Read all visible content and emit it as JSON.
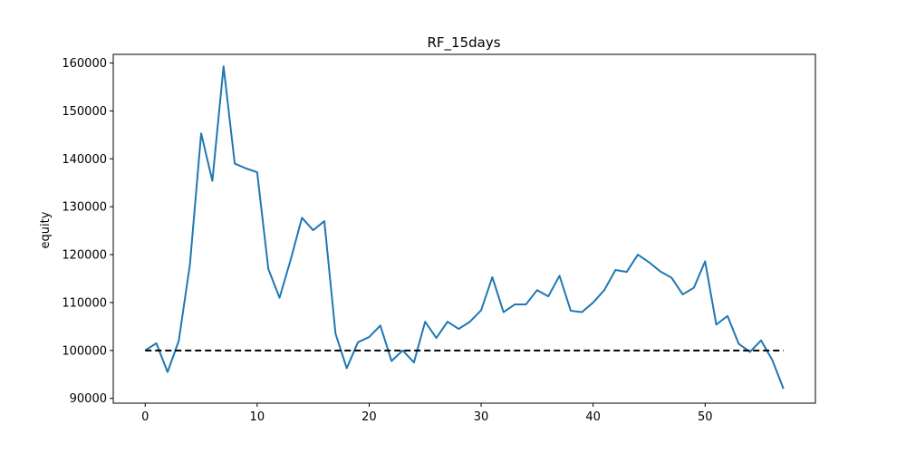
{
  "chart_data": {
    "type": "line",
    "title": "RF_15days",
    "xlabel": "",
    "ylabel": "equity",
    "xlim": [
      -2.85,
      59.85
    ],
    "ylim": [
      89000,
      161800
    ],
    "xticks": [
      0,
      10,
      20,
      30,
      40,
      50
    ],
    "yticks": [
      90000,
      100000,
      110000,
      120000,
      130000,
      140000,
      150000,
      160000
    ],
    "grid": false,
    "series": [
      {
        "color": "#1f77b4",
        "x": [
          0,
          1,
          2,
          3,
          4,
          5,
          6,
          7,
          8,
          9,
          10,
          11,
          12,
          13,
          14,
          15,
          16,
          17,
          18,
          19,
          20,
          21,
          22,
          23,
          24,
          25,
          26,
          27,
          28,
          29,
          30,
          31,
          32,
          33,
          34,
          35,
          36,
          37,
          38,
          39,
          40,
          41,
          42,
          43,
          44,
          45,
          46,
          47,
          48,
          49,
          50,
          51,
          52,
          53,
          54,
          55,
          56,
          57
        ],
        "values": [
          100000,
          101500,
          95500,
          102000,
          118000,
          145300,
          135400,
          159300,
          139000,
          138000,
          137200,
          117000,
          111000,
          119000,
          127700,
          125100,
          127000,
          103500,
          96300,
          101700,
          102800,
          105200,
          97800,
          100000,
          97500,
          106000,
          102600,
          106000,
          104500,
          106000,
          108400,
          115300,
          108000,
          109600,
          109600,
          112600,
          111300,
          115600,
          108300,
          108000,
          110000,
          112600,
          116800,
          116400,
          120000,
          118400,
          116500,
          115200,
          111700,
          113100,
          118600,
          105400,
          107200,
          101400,
          99700,
          102100,
          98000,
          92000
        ]
      }
    ],
    "baseline": {
      "y": 100000,
      "color": "#000000",
      "style": "dashed"
    }
  }
}
